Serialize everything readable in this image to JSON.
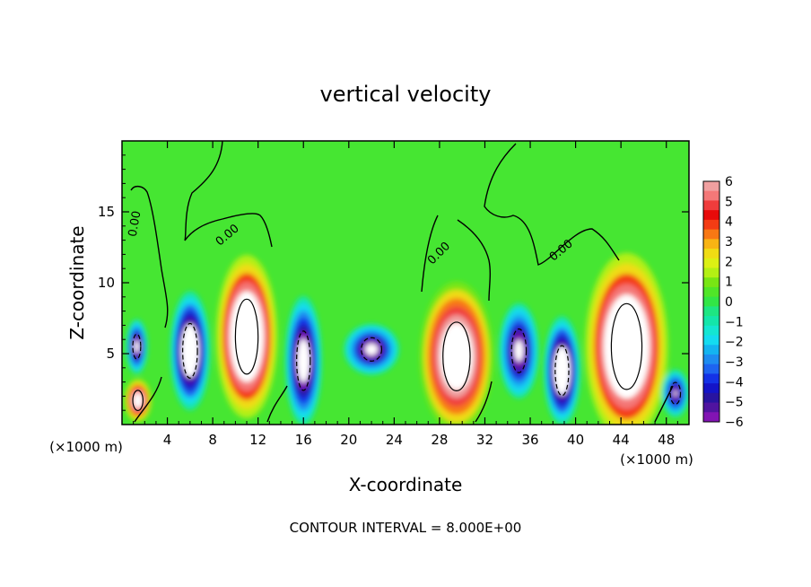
{
  "chart_data": {
    "type": "heatmap",
    "title": "vertical velocity",
    "xlabel": "X-coordinate",
    "ylabel": "Z-coordinate",
    "x_scale_note": "(×1000 m)",
    "x_scale_note_right": "(×1000 m)",
    "footer": "CONTOUR INTERVAL = 8.000E+00",
    "xlim": [
      0,
      50
    ],
    "ylim": [
      0,
      20
    ],
    "xticks": [
      "4",
      "8",
      "12",
      "16",
      "20",
      "24",
      "28",
      "32",
      "36",
      "40",
      "44",
      "48"
    ],
    "yticks": [
      "5",
      "10",
      "15"
    ],
    "colorbar": {
      "labels": [
        "6",
        "5",
        "4",
        "3",
        "2",
        "1",
        "0",
        "−1",
        "−2",
        "−3",
        "−4",
        "−5",
        "−6"
      ],
      "levels": [
        {
          "value": 6,
          "color": "#f0a0a0"
        },
        {
          "value": 5.5,
          "color": "#f47878"
        },
        {
          "value": 5,
          "color": "#f03c3c"
        },
        {
          "value": 4.5,
          "color": "#e80a0a"
        },
        {
          "value": 4,
          "color": "#f43c14"
        },
        {
          "value": 3.5,
          "color": "#f87814"
        },
        {
          "value": 3,
          "color": "#f8b414"
        },
        {
          "value": 2.5,
          "color": "#f0dc14"
        },
        {
          "value": 2,
          "color": "#dcf014"
        },
        {
          "value": 1.5,
          "color": "#b4f014"
        },
        {
          "value": 1,
          "color": "#78e614"
        },
        {
          "value": 0.5,
          "color": "#50e628"
        },
        {
          "value": 0,
          "color": "#32e646"
        },
        {
          "value": -0.5,
          "color": "#1ee682"
        },
        {
          "value": -1,
          "color": "#14e6aa"
        },
        {
          "value": -1.5,
          "color": "#14e6d2"
        },
        {
          "value": -2,
          "color": "#14dcf0"
        },
        {
          "value": -2.5,
          "color": "#14b4f0"
        },
        {
          "value": -3,
          "color": "#1e8cf0"
        },
        {
          "value": -3.5,
          "color": "#1e64f0"
        },
        {
          "value": -4,
          "color": "#1432e6"
        },
        {
          "value": -4.5,
          "color": "#1414c8"
        },
        {
          "value": -5,
          "color": "#2814a0"
        },
        {
          "value": -5.5,
          "color": "#5014a0"
        },
        {
          "value": -6,
          "color": "#8214b4"
        }
      ]
    },
    "contour_labels": [
      "0.00",
      "0.00",
      "0.00",
      "0.00"
    ],
    "cells": [
      {
        "x": 1.4,
        "z": 1.7,
        "w": 9,
        "sx": 0.9,
        "sz": 1.3
      },
      {
        "x": 1.3,
        "z": 5.5,
        "w": -8,
        "sx": 0.7,
        "sz": 1.6
      },
      {
        "x": 6,
        "z": 5.2,
        "w": -10,
        "sx": 1.3,
        "sz": 3.5
      },
      {
        "x": 11,
        "z": 6.2,
        "w": 12,
        "sx": 2.0,
        "sz": 4.8
      },
      {
        "x": 16,
        "z": 4.5,
        "w": -9,
        "sx": 1.2,
        "sz": 3.8
      },
      {
        "x": 22,
        "z": 5.3,
        "w": -8,
        "sx": 1.8,
        "sz": 1.5
      },
      {
        "x": 29.5,
        "z": 4.8,
        "w": 11,
        "sx": 2.4,
        "sz": 4.4
      },
      {
        "x": 35,
        "z": 5.2,
        "w": -8,
        "sx": 1.3,
        "sz": 2.8
      },
      {
        "x": 38.8,
        "z": 3.8,
        "w": -10,
        "sx": 1.2,
        "sz": 3.2
      },
      {
        "x": 44.5,
        "z": 5.5,
        "w": 12,
        "sx": 2.7,
        "sz": 5.5
      },
      {
        "x": 48.8,
        "z": 2.2,
        "w": -7,
        "sx": 0.9,
        "sz": 1.4
      }
    ]
  }
}
